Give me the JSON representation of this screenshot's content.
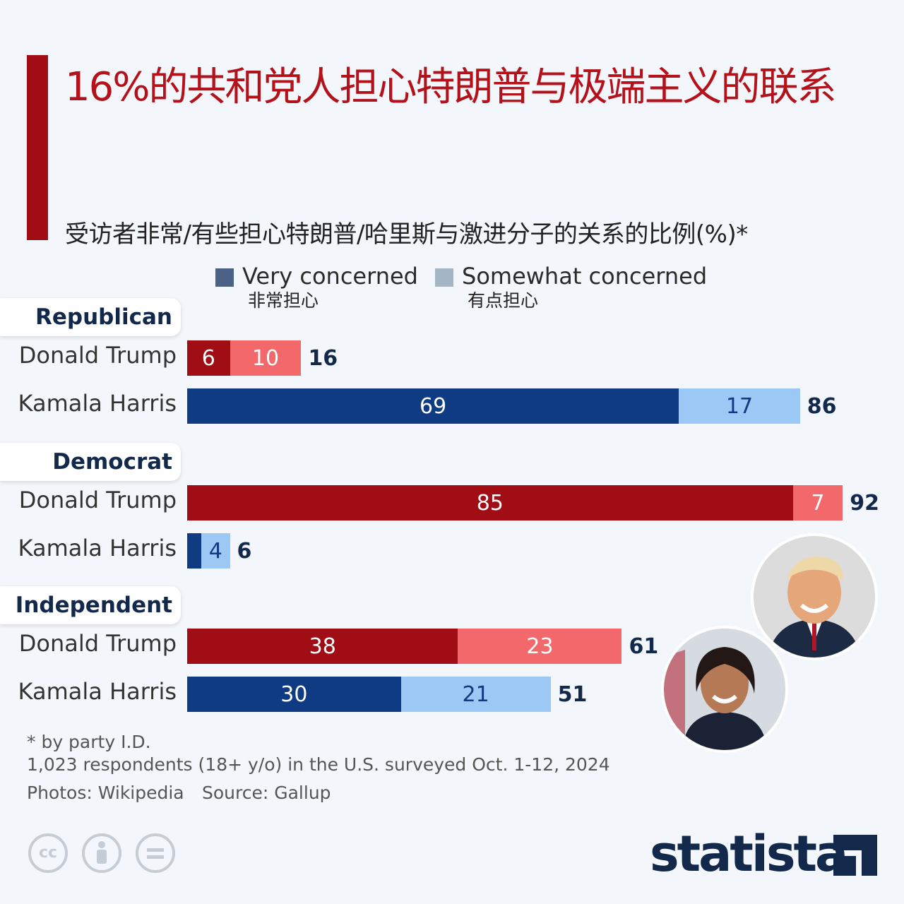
{
  "title": "16%的共和党人担心特朗普与极端主义的联系",
  "subtitle": "受访者非常/有些担心特朗普/哈里斯与激进分子的关系的比例(%)*",
  "legend": {
    "very": {
      "label": "Very concerned",
      "sub": "非常担心",
      "color": "#4a6285"
    },
    "somewhat": {
      "label": "Somewhat concerned",
      "sub": "有点担心",
      "color": "#a4b6c4"
    }
  },
  "chart_data": {
    "type": "bar",
    "orientation": "horizontal",
    "stacked": true,
    "title": "16%的共和党人担心特朗普与极端主义的联系",
    "subtitle": "受访者非常/有些担心特朗普/哈里斯与激进分子的关系的比例(%)*",
    "xlim": [
      0,
      100
    ],
    "groups": [
      {
        "name": "Republican",
        "rows": [
          {
            "label": "Donald Trump",
            "very": 6,
            "somewhat": 10,
            "total": 16,
            "party_color": "red"
          },
          {
            "label": "Kamala Harris",
            "very": 69,
            "somewhat": 17,
            "total": 86,
            "party_color": "blue"
          }
        ]
      },
      {
        "name": "Democrat",
        "rows": [
          {
            "label": "Donald Trump",
            "very": 85,
            "somewhat": 7,
            "total": 92,
            "party_color": "red"
          },
          {
            "label": "Kamala Harris",
            "very": 2,
            "somewhat": 4,
            "total": 6,
            "party_color": "blue"
          }
        ]
      },
      {
        "name": "Independent",
        "rows": [
          {
            "label": "Donald Trump",
            "very": 38,
            "somewhat": 23,
            "total": 61,
            "party_color": "red"
          },
          {
            "label": "Kamala Harris",
            "very": 30,
            "somewhat": 21,
            "total": 51,
            "party_color": "blue"
          }
        ]
      }
    ],
    "colors": {
      "red_very": "#a10d15",
      "red_somewhat": "#f2686b",
      "blue_very": "#0f3b82",
      "blue_somewhat": "#9cc8f5"
    }
  },
  "notes": {
    "footnote": "* by party I.D.",
    "sample": "1,023 respondents (18+ y/o) in the U.S. surveyed Oct. 1-12, 2024",
    "photos": "Photos: Wikipedia",
    "source": "Source: Gallup"
  },
  "license_icons": [
    "cc-icon",
    "attribution-icon",
    "no-derivatives-icon"
  ],
  "brand": "statista"
}
